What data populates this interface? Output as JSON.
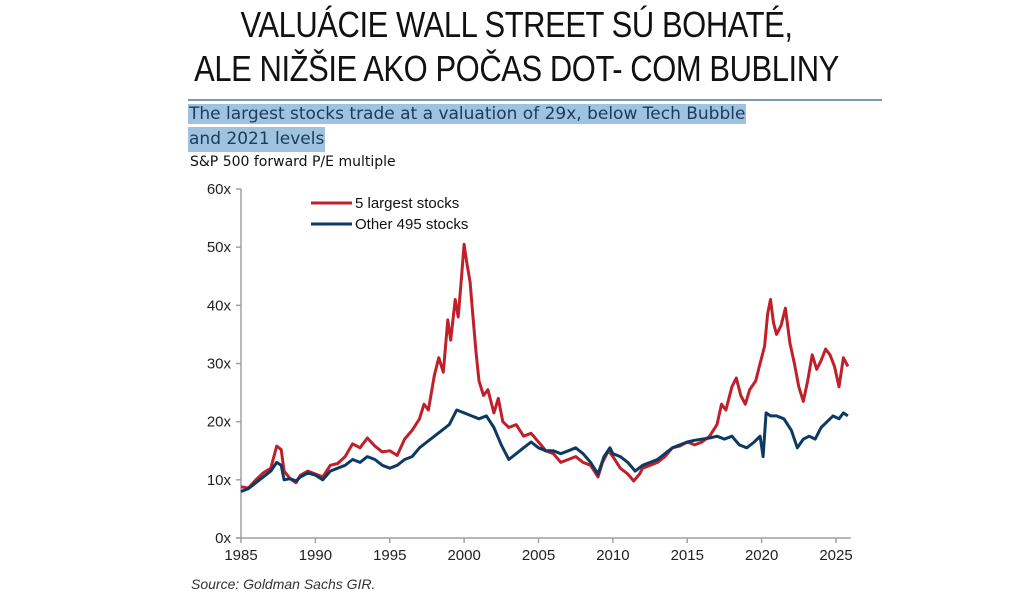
{
  "headline": {
    "line1": "VALUÁCIE WALL STREET SÚ BOHATÉ,",
    "line2": "ALE NIŽŠIE AKO POČAS DOT- COM BUBLINY"
  },
  "subtitle": {
    "line1": "The largest stocks trade at a valuation of 29x, below Tech Bubble",
    "line2": "and 2021 levels"
  },
  "unit_label": "S&P 500 forward P/E multiple",
  "source": "Source: Goldman Sachs GIR.",
  "chart_data": {
    "type": "line",
    "title": "The largest stocks trade at a valuation of 29x, below Tech Bubble and 2021 levels",
    "ylabel": "S&P 500 forward P/E multiple",
    "xlabel": "",
    "xlim": [
      1985,
      2026
    ],
    "ylim": [
      0,
      60
    ],
    "x_ticks": [
      1985,
      1990,
      1995,
      2000,
      2005,
      2010,
      2015,
      2020,
      2025
    ],
    "x_tick_labels": [
      "1985",
      "1990",
      "1995",
      "2000",
      "2005",
      "2010",
      "2015",
      "2020",
      "2025"
    ],
    "y_ticks": [
      0,
      10,
      20,
      30,
      40,
      50,
      60
    ],
    "y_tick_labels": [
      "0x",
      "10x",
      "20x",
      "30x",
      "40x",
      "50x",
      "60x"
    ],
    "grid": false,
    "legend_position": "top-left",
    "series": [
      {
        "name": "5 largest stocks",
        "color": "#c0202a",
        "points": [
          [
            1985.0,
            8.8
          ],
          [
            1985.5,
            8.6
          ],
          [
            1986.0,
            10.0
          ],
          [
            1986.5,
            11.2
          ],
          [
            1987.0,
            12.0
          ],
          [
            1987.4,
            15.8
          ],
          [
            1987.7,
            15.2
          ],
          [
            1987.9,
            11.5
          ],
          [
            1988.3,
            10.2
          ],
          [
            1988.7,
            9.5
          ],
          [
            1989.0,
            10.8
          ],
          [
            1989.5,
            11.5
          ],
          [
            1990.0,
            11.0
          ],
          [
            1990.5,
            10.5
          ],
          [
            1991.0,
            12.5
          ],
          [
            1991.5,
            12.8
          ],
          [
            1992.0,
            14.0
          ],
          [
            1992.5,
            16.2
          ],
          [
            1993.0,
            15.5
          ],
          [
            1993.5,
            17.2
          ],
          [
            1994.0,
            15.8
          ],
          [
            1994.5,
            14.8
          ],
          [
            1995.0,
            15.0
          ],
          [
            1995.5,
            14.2
          ],
          [
            1996.0,
            17.0
          ],
          [
            1996.5,
            18.5
          ],
          [
            1997.0,
            20.5
          ],
          [
            1997.3,
            23.0
          ],
          [
            1997.6,
            22.0
          ],
          [
            1998.0,
            28.0
          ],
          [
            1998.3,
            31.0
          ],
          [
            1998.6,
            28.5
          ],
          [
            1998.9,
            37.5
          ],
          [
            1999.1,
            34.0
          ],
          [
            1999.4,
            41.0
          ],
          [
            1999.6,
            38.0
          ],
          [
            1999.8,
            44.0
          ],
          [
            2000.0,
            50.5
          ],
          [
            2000.2,
            47.0
          ],
          [
            2000.4,
            44.0
          ],
          [
            2000.6,
            38.0
          ],
          [
            2000.8,
            32.0
          ],
          [
            2001.0,
            27.0
          ],
          [
            2001.3,
            24.5
          ],
          [
            2001.6,
            25.5
          ],
          [
            2002.0,
            21.5
          ],
          [
            2002.3,
            24.0
          ],
          [
            2002.6,
            20.0
          ],
          [
            2003.0,
            19.0
          ],
          [
            2003.5,
            19.5
          ],
          [
            2004.0,
            17.5
          ],
          [
            2004.5,
            18.0
          ],
          [
            2005.0,
            16.5
          ],
          [
            2005.5,
            15.0
          ],
          [
            2006.0,
            14.5
          ],
          [
            2006.5,
            13.0
          ],
          [
            2007.0,
            13.5
          ],
          [
            2007.5,
            14.0
          ],
          [
            2008.0,
            13.0
          ],
          [
            2008.5,
            12.5
          ],
          [
            2009.0,
            10.5
          ],
          [
            2009.3,
            13.0
          ],
          [
            2009.7,
            15.0
          ],
          [
            2010.0,
            14.0
          ],
          [
            2010.5,
            12.0
          ],
          [
            2011.0,
            11.0
          ],
          [
            2011.4,
            9.8
          ],
          [
            2011.8,
            11.0
          ],
          [
            2012.0,
            12.0
          ],
          [
            2012.5,
            12.5
          ],
          [
            2013.0,
            13.0
          ],
          [
            2013.5,
            14.0
          ],
          [
            2014.0,
            15.5
          ],
          [
            2014.5,
            15.8
          ],
          [
            2015.0,
            16.5
          ],
          [
            2015.5,
            16.0
          ],
          [
            2016.0,
            16.5
          ],
          [
            2016.5,
            17.5
          ],
          [
            2017.0,
            19.5
          ],
          [
            2017.3,
            23.0
          ],
          [
            2017.6,
            22.0
          ],
          [
            2018.0,
            26.0
          ],
          [
            2018.3,
            27.5
          ],
          [
            2018.6,
            24.5
          ],
          [
            2018.9,
            23.0
          ],
          [
            2019.2,
            25.5
          ],
          [
            2019.6,
            27.0
          ],
          [
            2019.9,
            30.0
          ],
          [
            2020.2,
            33.0
          ],
          [
            2020.4,
            38.5
          ],
          [
            2020.6,
            41.0
          ],
          [
            2020.8,
            37.0
          ],
          [
            2021.0,
            35.0
          ],
          [
            2021.3,
            36.5
          ],
          [
            2021.6,
            39.5
          ],
          [
            2021.9,
            33.5
          ],
          [
            2022.2,
            30.0
          ],
          [
            2022.5,
            26.0
          ],
          [
            2022.8,
            23.5
          ],
          [
            2023.1,
            27.0
          ],
          [
            2023.4,
            31.5
          ],
          [
            2023.7,
            29.0
          ],
          [
            2024.0,
            30.5
          ],
          [
            2024.3,
            32.5
          ],
          [
            2024.6,
            31.5
          ],
          [
            2024.9,
            29.5
          ],
          [
            2025.2,
            26.0
          ],
          [
            2025.5,
            31.0
          ],
          [
            2025.8,
            29.5
          ]
        ]
      },
      {
        "name": "Other 495 stocks",
        "color": "#0d3a63",
        "points": [
          [
            1985.0,
            8.0
          ],
          [
            1985.5,
            8.5
          ],
          [
            1986.0,
            9.5
          ],
          [
            1986.5,
            10.5
          ],
          [
            1987.0,
            11.5
          ],
          [
            1987.4,
            13.0
          ],
          [
            1987.7,
            12.5
          ],
          [
            1987.9,
            10.0
          ],
          [
            1988.3,
            10.2
          ],
          [
            1988.7,
            9.8
          ],
          [
            1989.0,
            10.5
          ],
          [
            1989.5,
            11.2
          ],
          [
            1990.0,
            10.8
          ],
          [
            1990.5,
            10.0
          ],
          [
            1991.0,
            11.5
          ],
          [
            1991.5,
            12.0
          ],
          [
            1992.0,
            12.5
          ],
          [
            1992.5,
            13.5
          ],
          [
            1993.0,
            13.0
          ],
          [
            1993.5,
            14.0
          ],
          [
            1994.0,
            13.5
          ],
          [
            1994.5,
            12.5
          ],
          [
            1995.0,
            12.0
          ],
          [
            1995.5,
            12.5
          ],
          [
            1996.0,
            13.5
          ],
          [
            1996.5,
            14.0
          ],
          [
            1997.0,
            15.5
          ],
          [
            1997.5,
            16.5
          ],
          [
            1998.0,
            17.5
          ],
          [
            1998.5,
            18.5
          ],
          [
            1999.0,
            19.5
          ],
          [
            1999.5,
            22.0
          ],
          [
            2000.0,
            21.5
          ],
          [
            2000.5,
            21.0
          ],
          [
            2001.0,
            20.5
          ],
          [
            2001.5,
            21.0
          ],
          [
            2002.0,
            19.0
          ],
          [
            2002.5,
            16.0
          ],
          [
            2003.0,
            13.5
          ],
          [
            2003.5,
            14.5
          ],
          [
            2004.0,
            15.5
          ],
          [
            2004.5,
            16.5
          ],
          [
            2005.0,
            15.5
          ],
          [
            2005.5,
            15.0
          ],
          [
            2006.0,
            15.0
          ],
          [
            2006.5,
            14.5
          ],
          [
            2007.0,
            15.0
          ],
          [
            2007.5,
            15.5
          ],
          [
            2008.0,
            14.5
          ],
          [
            2008.5,
            13.0
          ],
          [
            2009.0,
            11.0
          ],
          [
            2009.4,
            14.0
          ],
          [
            2009.8,
            15.5
          ],
          [
            2010.0,
            14.5
          ],
          [
            2010.5,
            14.0
          ],
          [
            2011.0,
            13.0
          ],
          [
            2011.5,
            11.5
          ],
          [
            2012.0,
            12.5
          ],
          [
            2012.5,
            13.0
          ],
          [
            2013.0,
            13.5
          ],
          [
            2013.5,
            14.5
          ],
          [
            2014.0,
            15.5
          ],
          [
            2014.5,
            16.0
          ],
          [
            2015.0,
            16.5
          ],
          [
            2015.5,
            16.8
          ],
          [
            2016.0,
            17.0
          ],
          [
            2016.5,
            17.2
          ],
          [
            2017.0,
            17.5
          ],
          [
            2017.5,
            17.0
          ],
          [
            2018.0,
            17.5
          ],
          [
            2018.5,
            16.0
          ],
          [
            2019.0,
            15.5
          ],
          [
            2019.5,
            16.5
          ],
          [
            2019.9,
            17.5
          ],
          [
            2020.1,
            14.0
          ],
          [
            2020.3,
            21.5
          ],
          [
            2020.6,
            21.0
          ],
          [
            2021.0,
            21.0
          ],
          [
            2021.5,
            20.5
          ],
          [
            2022.0,
            18.5
          ],
          [
            2022.4,
            15.5
          ],
          [
            2022.8,
            17.0
          ],
          [
            2023.2,
            17.5
          ],
          [
            2023.6,
            17.0
          ],
          [
            2024.0,
            19.0
          ],
          [
            2024.4,
            20.0
          ],
          [
            2024.8,
            21.0
          ],
          [
            2025.2,
            20.5
          ],
          [
            2025.5,
            21.5
          ],
          [
            2025.8,
            21.0
          ]
        ]
      }
    ]
  }
}
